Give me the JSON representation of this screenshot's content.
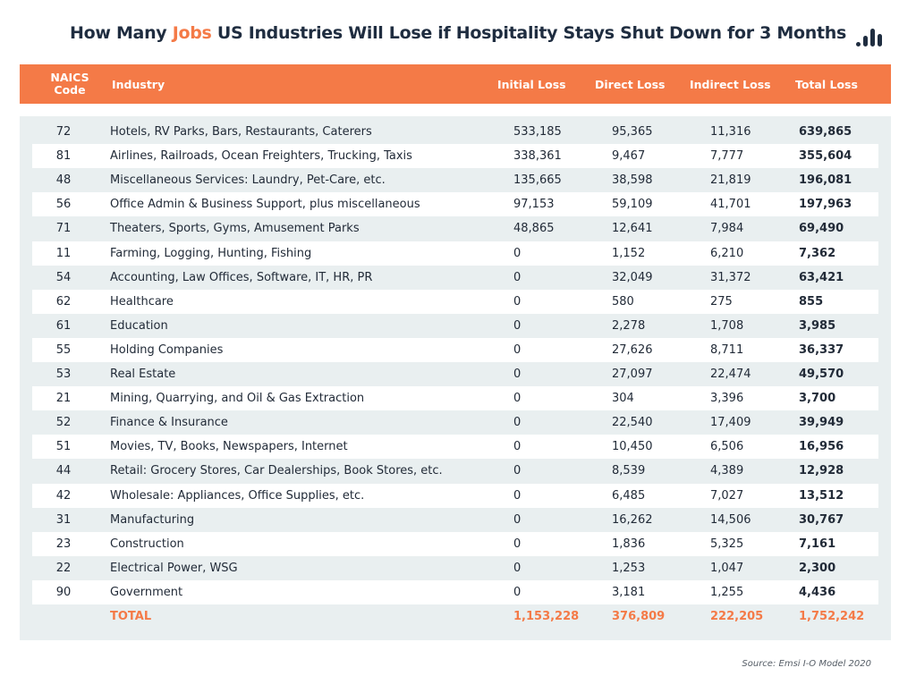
{
  "title": {
    "before": "How Many ",
    "highlight": "Jobs",
    "after": " US Industries Will Lose if Hospitality Stays Shut Down for 3 Months"
  },
  "logo_icon": "bar-chart-logo-icon",
  "colors": {
    "accent": "#f47a47",
    "header_text": "#ffffff",
    "panel": "#e9eff0",
    "title": "#1f2d40"
  },
  "chart_data": {
    "type": "table",
    "columns": {
      "naics_line1": "NAICS",
      "naics_line2": "Code",
      "industry": "Industry",
      "initial": "Initial Loss",
      "direct": "Direct Loss",
      "indirect": "Indirect Loss",
      "total": "Total Loss"
    },
    "rows": [
      {
        "code": "72",
        "industry": "Hotels, RV Parks, Bars, Restaurants, Caterers",
        "initial": "533,185",
        "direct": "95,365",
        "indirect": "11,316",
        "total": "639,865"
      },
      {
        "code": "81",
        "industry": "Airlines, Railroads, Ocean Freighters, Trucking, Taxis",
        "initial": "338,361",
        "direct": "9,467",
        "indirect": "7,777",
        "total": "355,604"
      },
      {
        "code": "48",
        "industry": "Miscellaneous Services: Laundry, Pet-Care, etc.",
        "initial": "135,665",
        "direct": "38,598",
        "indirect": "21,819",
        "total": "196,081"
      },
      {
        "code": "56",
        "industry": "Office Admin & Business Support, plus miscellaneous",
        "initial": "97,153",
        "direct": "59,109",
        "indirect": "41,701",
        "total": "197,963"
      },
      {
        "code": "71",
        "industry": "Theaters, Sports, Gyms, Amusement Parks",
        "initial": "48,865",
        "direct": "12,641",
        "indirect": "7,984",
        "total": "69,490"
      },
      {
        "code": "11",
        "industry": "Farming, Logging, Hunting, Fishing",
        "initial": "0",
        "direct": "1,152",
        "indirect": "6,210",
        "total": "7,362"
      },
      {
        "code": "54",
        "industry": "Accounting, Law Offices, Software, IT, HR, PR",
        "initial": "0",
        "direct": "32,049",
        "indirect": "31,372",
        "total": "63,421"
      },
      {
        "code": "62",
        "industry": "Healthcare",
        "initial": "0",
        "direct": "580",
        "indirect": "275",
        "total": "855"
      },
      {
        "code": "61",
        "industry": "Education",
        "initial": "0",
        "direct": "2,278",
        "indirect": "1,708",
        "total": "3,985"
      },
      {
        "code": "55",
        "industry": "Holding Companies",
        "initial": "0",
        "direct": "27,626",
        "indirect": "8,711",
        "total": "36,337"
      },
      {
        "code": "53",
        "industry": "Real Estate",
        "initial": "0",
        "direct": "27,097",
        "indirect": "22,474",
        "total": "49,570"
      },
      {
        "code": "21",
        "industry": "Mining, Quarrying, and Oil & Gas Extraction",
        "initial": "0",
        "direct": "304",
        "indirect": "3,396",
        "total": "3,700"
      },
      {
        "code": "52",
        "industry": "Finance & Insurance",
        "initial": "0",
        "direct": "22,540",
        "indirect": "17,409",
        "total": "39,949"
      },
      {
        "code": "51",
        "industry": "Movies, TV, Books, Newspapers, Internet",
        "initial": "0",
        "direct": "10,450",
        "indirect": "6,506",
        "total": "16,956"
      },
      {
        "code": "44",
        "industry": "Retail: Grocery Stores, Car Dealerships, Book Stores, etc.",
        "initial": "0",
        "direct": "8,539",
        "indirect": "4,389",
        "total": "12,928"
      },
      {
        "code": "42",
        "industry": "Wholesale: Appliances, Office Supplies, etc.",
        "initial": "0",
        "direct": "6,485",
        "indirect": "7,027",
        "total": "13,512"
      },
      {
        "code": "31",
        "industry": "Manufacturing",
        "initial": "0",
        "direct": "16,262",
        "indirect": "14,506",
        "total": "30,767"
      },
      {
        "code": "23",
        "industry": "Construction",
        "initial": "0",
        "direct": "1,836",
        "indirect": "5,325",
        "total": "7,161"
      },
      {
        "code": "22",
        "industry": "Electrical Power, WSG",
        "initial": "0",
        "direct": "1,253",
        "indirect": "1,047",
        "total": "2,300"
      },
      {
        "code": "90",
        "industry": "Government",
        "initial": "0",
        "direct": "3,181",
        "indirect": "1,255",
        "total": "4,436"
      }
    ],
    "total_row": {
      "code": "",
      "industry": "TOTAL",
      "initial": "1,153,228",
      "direct": "376,809",
      "indirect": "222,205",
      "total": "1,752,242"
    }
  },
  "source": "Source: Emsi I-O Model 2020"
}
